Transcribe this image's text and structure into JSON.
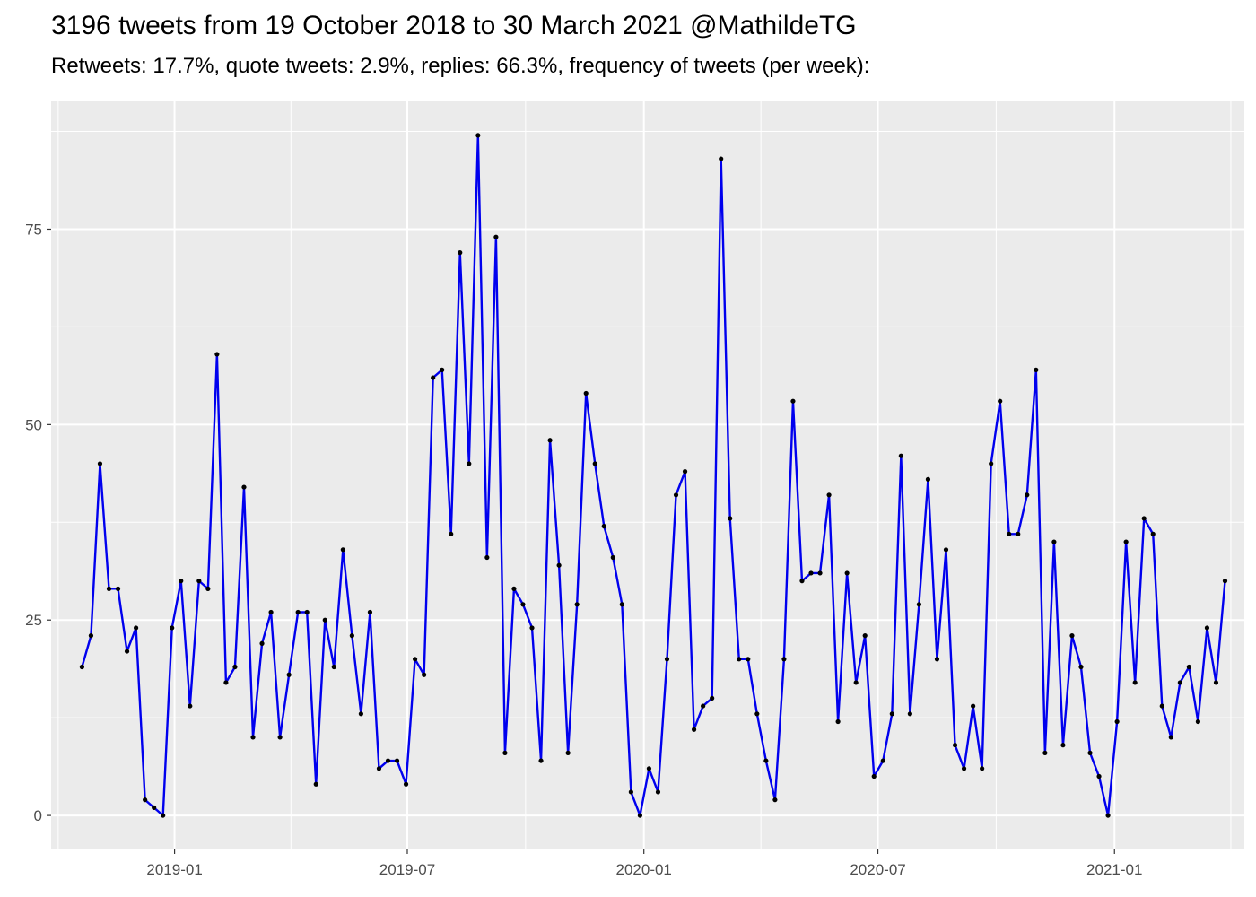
{
  "title": "3196 tweets from 19 October 2018 to 30 March 2021 @MathildeTG",
  "subtitle": "Retweets: 17.7%, quote tweets: 2.9%, replies: 66.3%, frequency of tweets (per week):",
  "chart_data": {
    "type": "line",
    "title": "3196 tweets from 19 October 2018 to 30 March 2021 @MathildeTG",
    "subtitle": "Retweets: 17.7%, quote tweets: 2.9%, replies: 66.3%, frequency of tweets (per week):",
    "xlabel": "",
    "ylabel": "",
    "x_axis": {
      "type": "date",
      "range": [
        "2018-09-27",
        "2021-04-12"
      ],
      "ticks": [
        "2019-01-01",
        "2019-07-01",
        "2020-01-01",
        "2020-07-01",
        "2021-01-01"
      ],
      "tick_labels": [
        "2019-01",
        "2019-07",
        "2020-01",
        "2020-07",
        "2021-01"
      ]
    },
    "y_axis": {
      "range": [
        -4.35,
        91.35
      ],
      "ticks": [
        0,
        25,
        50,
        75
      ],
      "tick_labels": [
        "0",
        "25",
        "50",
        "75"
      ]
    },
    "grid": true,
    "legend": "none",
    "line_color": "#0000ee",
    "point_color": "#000000",
    "panel_background": "#ebebeb",
    "series": [
      {
        "x": [
          "2018-10-21",
          "2018-10-28",
          "2018-11-04",
          "2018-11-11",
          "2018-11-18",
          "2018-11-25",
          "2018-12-02",
          "2018-12-09",
          "2018-12-16",
          "2018-12-23",
          "2018-12-30",
          "2019-01-06",
          "2019-01-13",
          "2019-01-20",
          "2019-01-27",
          "2019-02-03",
          "2019-02-10",
          "2019-02-17",
          "2019-02-24",
          "2019-03-03",
          "2019-03-10",
          "2019-03-17",
          "2019-03-24",
          "2019-03-31",
          "2019-04-07",
          "2019-04-14",
          "2019-04-21",
          "2019-04-28",
          "2019-05-05",
          "2019-05-12",
          "2019-05-19",
          "2019-05-26",
          "2019-06-02",
          "2019-06-09",
          "2019-06-16",
          "2019-06-23",
          "2019-06-30",
          "2019-07-07",
          "2019-07-14",
          "2019-07-21",
          "2019-07-28",
          "2019-08-04",
          "2019-08-11",
          "2019-08-18",
          "2019-08-25",
          "2019-09-01",
          "2019-09-08",
          "2019-09-15",
          "2019-09-22",
          "2019-09-29",
          "2019-10-06",
          "2019-10-13",
          "2019-10-20",
          "2019-10-27",
          "2019-11-03",
          "2019-11-10",
          "2019-11-17",
          "2019-11-24",
          "2019-12-01",
          "2019-12-08",
          "2019-12-15",
          "2019-12-22",
          "2019-12-29",
          "2020-01-05",
          "2020-01-12",
          "2020-01-19",
          "2020-01-26",
          "2020-02-02",
          "2020-02-09",
          "2020-02-16",
          "2020-02-23",
          "2020-03-01",
          "2020-03-08",
          "2020-03-15",
          "2020-03-22",
          "2020-03-29",
          "2020-04-05",
          "2020-04-12",
          "2020-04-19",
          "2020-04-26",
          "2020-05-03",
          "2020-05-10",
          "2020-05-17",
          "2020-05-24",
          "2020-05-31",
          "2020-06-07",
          "2020-06-14",
          "2020-06-21",
          "2020-06-28",
          "2020-07-05",
          "2020-07-12",
          "2020-07-19",
          "2020-07-26",
          "2020-08-02",
          "2020-08-09",
          "2020-08-16",
          "2020-08-23",
          "2020-08-30",
          "2020-09-06",
          "2020-09-13",
          "2020-09-20",
          "2020-09-27",
          "2020-10-04",
          "2020-10-11",
          "2020-10-18",
          "2020-10-25",
          "2020-11-01",
          "2020-11-08",
          "2020-11-15",
          "2020-11-22",
          "2020-11-29",
          "2020-12-06",
          "2020-12-13",
          "2020-12-20",
          "2020-12-27",
          "2021-01-03",
          "2021-01-10",
          "2021-01-17",
          "2021-01-24",
          "2021-01-31",
          "2021-02-07",
          "2021-02-14",
          "2021-02-21",
          "2021-02-28",
          "2021-03-07",
          "2021-03-14",
          "2021-03-21",
          "2021-03-28"
        ],
        "values": [
          19,
          23,
          45,
          29,
          29,
          21,
          24,
          2,
          1,
          0,
          24,
          30,
          14,
          30,
          29,
          59,
          17,
          19,
          42,
          10,
          22,
          26,
          10,
          18,
          26,
          26,
          4,
          25,
          19,
          34,
          23,
          13,
          26,
          6,
          7,
          7,
          4,
          20,
          18,
          56,
          57,
          36,
          72,
          45,
          87,
          33,
          74,
          8,
          29,
          27,
          24,
          7,
          48,
          32,
          8,
          27,
          54,
          45,
          37,
          33,
          27,
          3,
          0,
          6,
          3,
          20,
          41,
          44,
          11,
          14,
          15,
          84,
          38,
          20,
          20,
          13,
          7,
          2,
          20,
          53,
          30,
          31,
          31,
          41,
          12,
          31,
          17,
          23,
          5,
          7,
          13,
          46,
          13,
          27,
          43,
          20,
          34,
          9,
          6,
          14,
          6,
          45,
          53,
          36,
          36,
          41,
          57,
          8,
          35,
          9,
          23,
          19,
          8,
          5,
          0,
          12,
          35,
          17,
          38,
          36,
          14,
          10,
          17,
          19,
          12,
          24,
          17,
          30
        ]
      }
    ]
  }
}
